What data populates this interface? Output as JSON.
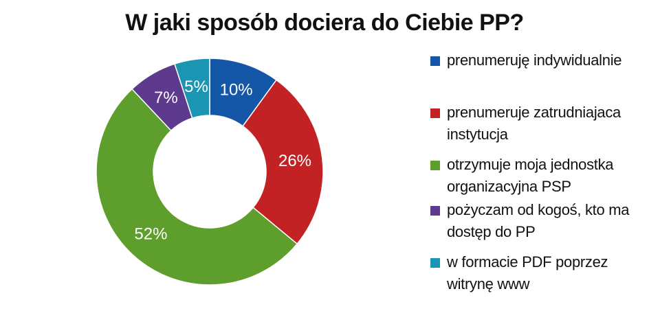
{
  "chart_data": {
    "type": "pie",
    "title": "W jaki sposób dociera do Ciebie PP?",
    "series": [
      {
        "label": "prenumeruję indywidualnie",
        "value": 10,
        "display": "10%",
        "color": "#1457a6"
      },
      {
        "label": "prenumeruje zatrudniajaca instytucja",
        "value": 26,
        "display": "26%",
        "color": "#c32224"
      },
      {
        "label": "otrzymuje moja jednostka organizacyjna PSP",
        "value": 52,
        "display": "52%",
        "color": "#5e9e2c"
      },
      {
        "label": "pożyczam od kogoś, kto ma dostęp do PP",
        "value": 7,
        "display": "7%",
        "color": "#5e3a8e"
      },
      {
        "label": "w formacie PDF poprzez witrynę www",
        "value": 5,
        "display": "5%",
        "color": "#1b96b2"
      }
    ],
    "legend_position": "right"
  }
}
